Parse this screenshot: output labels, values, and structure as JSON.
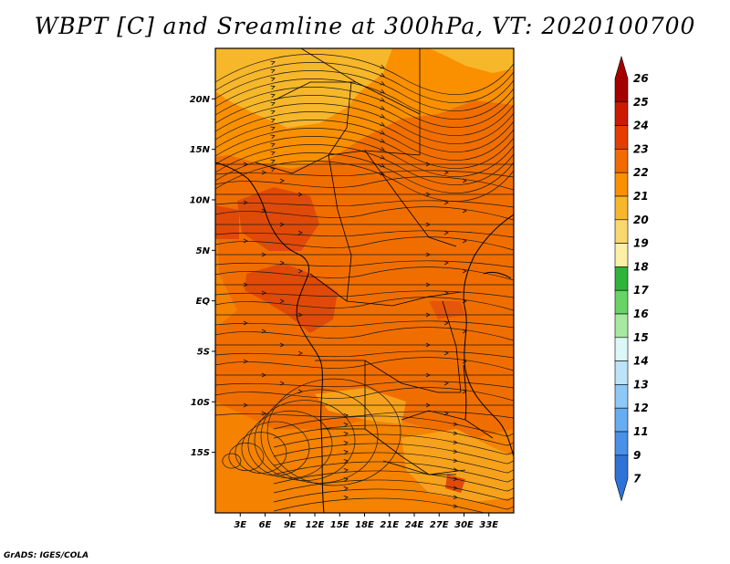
{
  "title": "WBPT [C] and Sreamline at 300hPa, VT: 2020100700",
  "credit": "GrADS: IGES/COLA",
  "map": {
    "lat_range": [
      -21,
      25
    ],
    "lon_range": [
      0,
      36
    ],
    "lat_ticks": [
      {
        "value": 20,
        "label": "20N"
      },
      {
        "value": 15,
        "label": "15N"
      },
      {
        "value": 10,
        "label": "10N"
      },
      {
        "value": 5,
        "label": "5N"
      },
      {
        "value": 0,
        "label": "EQ"
      },
      {
        "value": -5,
        "label": "5S"
      },
      {
        "value": -10,
        "label": "10S"
      },
      {
        "value": -15,
        "label": "15S"
      }
    ],
    "lon_ticks": [
      {
        "value": 3,
        "label": "3E"
      },
      {
        "value": 6,
        "label": "6E"
      },
      {
        "value": 9,
        "label": "9E"
      },
      {
        "value": 12,
        "label": "12E"
      },
      {
        "value": 15,
        "label": "15E"
      },
      {
        "value": 18,
        "label": "18E"
      },
      {
        "value": 21,
        "label": "21E"
      },
      {
        "value": 24,
        "label": "24E"
      },
      {
        "value": 27,
        "label": "27E"
      },
      {
        "value": 30,
        "label": "30E"
      },
      {
        "value": 33,
        "label": "33E"
      }
    ]
  },
  "colorbar": {
    "labels": [
      "26",
      "25",
      "24",
      "23",
      "22",
      "21",
      "20",
      "19",
      "18",
      "17",
      "16",
      "15",
      "14",
      "13",
      "12",
      "11",
      "9",
      "7"
    ],
    "colors": [
      "#a50000",
      "#cc1a00",
      "#e63c00",
      "#f26a00",
      "#fa9000",
      "#f7b72a",
      "#fad76e",
      "#fcefa6",
      "#2fb43a",
      "#68d466",
      "#a8e9a2",
      "#dcf7f7",
      "#bde3f9",
      "#8ec8f6",
      "#68acf1",
      "#4a90e8",
      "#2f73d8"
    ]
  }
}
